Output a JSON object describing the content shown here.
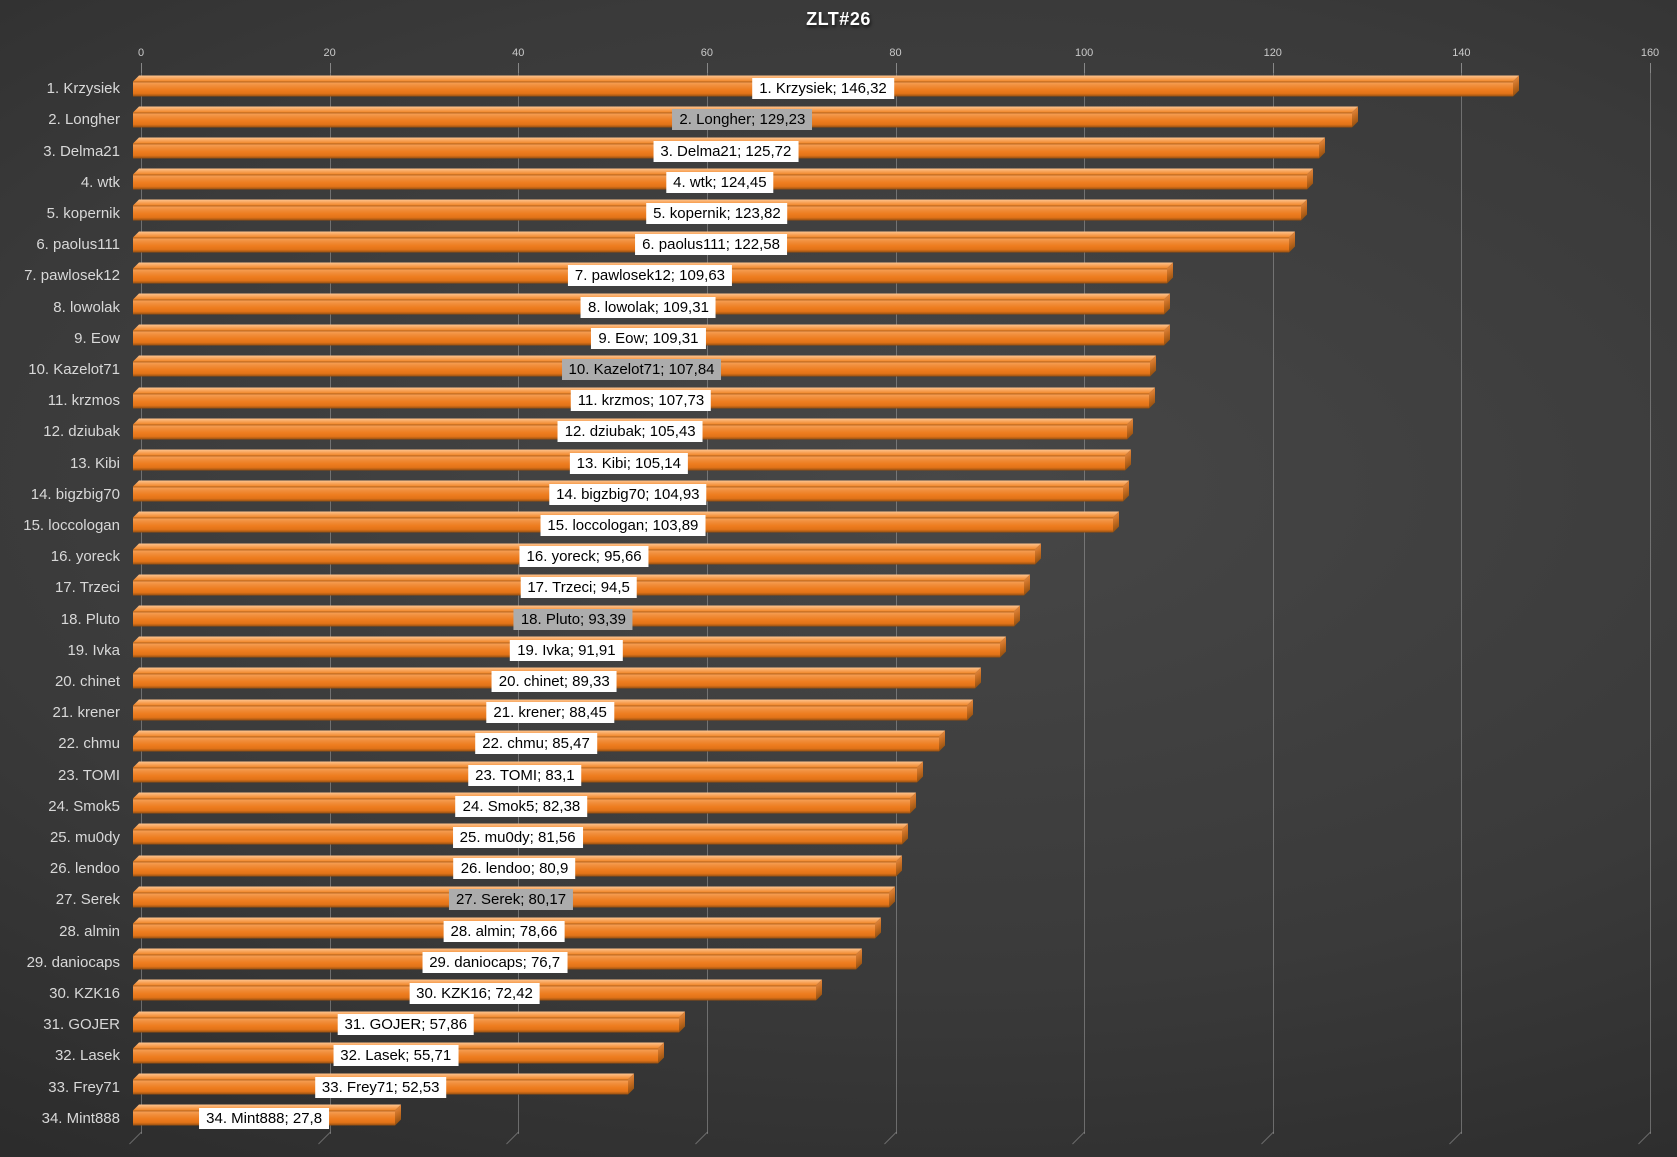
{
  "title": "ZLT#26",
  "colors": {
    "background_center": "#474747",
    "background_edge": "#1F1F1F",
    "bar_front": "#EE7D1F",
    "bar_top_face": "#F7A053",
    "bar_side_face": "#C66D22",
    "gridline": "#A5A5A5",
    "category_text": "#D8D8D8",
    "axis_text": "#C9C9C9",
    "title_text": "#FFFFFF",
    "data_label_bg": "#FFFFFF",
    "data_label_bg_highlight": "#ACACAC",
    "data_label_text": "#000000"
  },
  "chart_data": {
    "type": "bar",
    "orientation": "horizontal",
    "title": "ZLT#26",
    "xlabel": "",
    "ylabel": "",
    "xlim": [
      0,
      160
    ],
    "x_ticks": [
      0,
      20,
      40,
      60,
      80,
      100,
      120,
      140,
      160
    ],
    "grid": true,
    "legend": false,
    "value_axis_position": "top",
    "categories": [
      "1. Krzysiek",
      "2. Longher",
      "3. Delma21",
      "4. wtk",
      "5. kopernik",
      "6. paolus111",
      "7. pawlosek12",
      "8. lowolak",
      "9. Eow",
      "10. Kazelot71",
      "11. krzmos",
      "12. dziubak",
      "13. Kibi",
      "14. bigzbig70",
      "15. loccologan",
      "16. yoreck",
      "17. Trzeci",
      "18. Pluto",
      "19. Ivka",
      "20. chinet",
      "21. krener",
      "22. chmu",
      "23. TOMI",
      "24. Smok5",
      "25. mu0dy",
      "26. lendoo",
      "27. Serek",
      "28. almin",
      "29. daniocaps",
      "30. KZK16",
      "31. GOJER",
      "32. Lasek",
      "33. Frey71",
      "34. Mint888"
    ],
    "values": [
      146.32,
      129.23,
      125.72,
      124.45,
      123.82,
      122.58,
      109.63,
      109.31,
      109.31,
      107.84,
      107.73,
      105.43,
      105.14,
      104.93,
      103.89,
      95.66,
      94.5,
      93.39,
      91.91,
      89.33,
      88.45,
      85.47,
      83.1,
      82.38,
      81.56,
      80.9,
      80.17,
      78.66,
      76.7,
      72.42,
      57.86,
      55.71,
      52.53,
      27.8
    ],
    "data_labels": [
      "1. Krzysiek; 146,32",
      "2. Longher; 129,23",
      "3. Delma21; 125,72",
      "4. wtk; 124,45",
      "5. kopernik; 123,82",
      "6. paolus111; 122,58",
      "7. pawlosek12; 109,63",
      "8. lowolak; 109,31",
      "9. Eow; 109,31",
      "10. Kazelot71; 107,84",
      "11. krzmos; 107,73",
      "12. dziubak; 105,43",
      "13. Kibi; 105,14",
      "14. bigzbig70; 104,93",
      "15. loccologan; 103,89",
      "16. yoreck; 95,66",
      "17. Trzeci; 94,5",
      "18. Pluto; 93,39",
      "19. Ivka; 91,91",
      "20. chinet; 89,33",
      "21. krener; 88,45",
      "22. chmu; 85,47",
      "23. TOMI; 83,1",
      "24. Smok5; 82,38",
      "25. mu0dy; 81,56",
      "26. lendoo; 80,9",
      "27. Serek; 80,17",
      "28. almin; 78,66",
      "29. daniocaps; 76,7",
      "30. KZK16; 72,42",
      "31. GOJER; 57,86",
      "32. Lasek; 55,71",
      "33. Frey71; 52,53",
      "34. Mint888; 27,8"
    ],
    "highlighted_ranks": [
      2,
      10,
      18,
      27
    ],
    "data_label_position": "center",
    "bar_style": "3d"
  }
}
